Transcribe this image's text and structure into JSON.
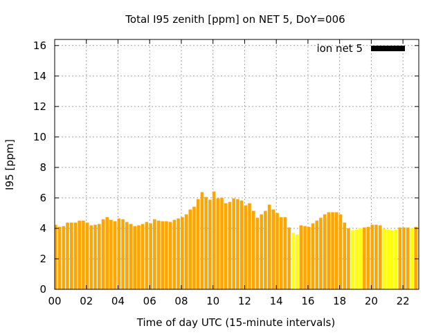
{
  "chart_data": {
    "type": "bar",
    "title": "Total I95 zenith [ppm] on NET 5, DoY=006",
    "xlabel": "Time of day UTC (15-minute intervals)",
    "ylabel": "I95 [ppm]",
    "xlim": [
      0,
      23
    ],
    "ylim": [
      0,
      16.4
    ],
    "grid": true,
    "x_tick_labels": [
      "00",
      "02",
      "04",
      "06",
      "08",
      "10",
      "12",
      "14",
      "16",
      "18",
      "20",
      "22"
    ],
    "x_tick_values": [
      0,
      2,
      4,
      6,
      8,
      10,
      12,
      14,
      16,
      18,
      20,
      22
    ],
    "y_ticks": [
      0,
      2,
      4,
      6,
      8,
      10,
      12,
      14,
      16
    ],
    "legend": {
      "label": "ion net 5",
      "placement": "top-right",
      "color": "#000000"
    },
    "bar_step_hours": 0.25,
    "colors": {
      "normal": "#FFA500",
      "flagged": "#FFFF00"
    },
    "values": [
      4.24,
      4.1,
      4.15,
      4.38,
      4.38,
      4.38,
      4.51,
      4.51,
      4.38,
      4.2,
      4.24,
      4.29,
      4.6,
      4.74,
      4.56,
      4.47,
      4.65,
      4.6,
      4.42,
      4.29,
      4.15,
      4.2,
      4.29,
      4.42,
      4.33,
      4.6,
      4.51,
      4.47,
      4.47,
      4.42,
      4.56,
      4.65,
      4.74,
      4.92,
      5.24,
      5.42,
      5.92,
      6.38,
      6.06,
      5.88,
      6.42,
      5.97,
      6.01,
      5.65,
      5.74,
      5.97,
      5.92,
      5.83,
      5.51,
      5.65,
      5.15,
      4.7,
      4.92,
      5.15,
      5.56,
      5.24,
      5.01,
      4.74,
      4.74,
      4.06,
      3.7,
      3.6,
      4.2,
      4.15,
      4.1,
      4.33,
      4.51,
      4.7,
      4.92,
      5.06,
      5.06,
      5.06,
      4.92,
      4.38,
      4.01,
      3.88,
      3.92,
      4.01,
      4.06,
      4.1,
      4.24,
      4.24,
      4.2,
      3.97,
      3.92,
      3.88,
      3.92,
      4.06,
      4.06,
      4.06,
      4.01,
      4.1
    ],
    "flagged": [
      60,
      61,
      75,
      76,
      77,
      83,
      84,
      85,
      86,
      90
    ]
  }
}
